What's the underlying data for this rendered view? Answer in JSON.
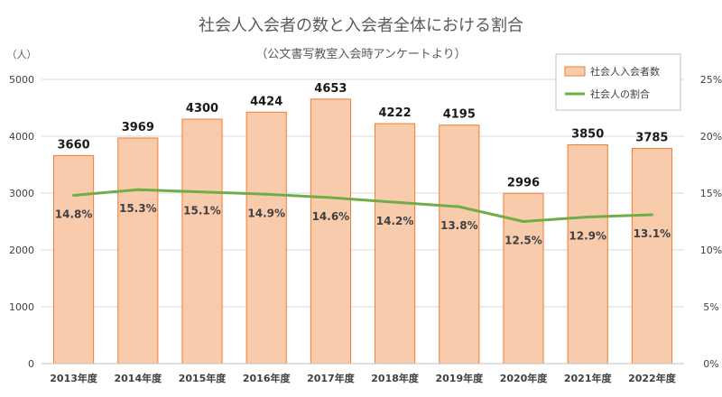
{
  "chart_data": {
    "type": "bar+line",
    "title": "社会人入会者の数と入会者全体における割合",
    "subtitle": "（公文書写教室入会時アンケートより）",
    "y_left_unit": "（人）",
    "categories": [
      "2013年度",
      "2014年度",
      "2015年度",
      "2016年度",
      "2017年度",
      "2018年度",
      "2019年度",
      "2020年度",
      "2021年度",
      "2022年度"
    ],
    "series": [
      {
        "name": "社会人入会者数",
        "type": "bar",
        "axis": "left",
        "values": [
          3660,
          3969,
          4300,
          4424,
          4653,
          4222,
          4195,
          2996,
          3850,
          3785
        ],
        "color": "#f8cbad",
        "border": "#ed7d31"
      },
      {
        "name": "社会人の割合",
        "type": "line",
        "axis": "right",
        "values": [
          14.8,
          15.3,
          15.1,
          14.9,
          14.6,
          14.2,
          13.8,
          12.5,
          12.9,
          13.1
        ],
        "labels": [
          "14.8%",
          "15.3%",
          "15.1%",
          "14.9%",
          "14.6%",
          "14.2%",
          "13.8%",
          "12.5%",
          "12.9%",
          "13.1%"
        ],
        "color": "#70ad47"
      }
    ],
    "y_left": {
      "min": 0,
      "max": 5000,
      "ticks": [
        0,
        1000,
        2000,
        3000,
        4000,
        5000
      ]
    },
    "y_right": {
      "min": 0,
      "max": 25,
      "ticks": [
        "0%",
        "5%",
        "10%",
        "15%",
        "20%",
        "25%"
      ]
    },
    "grid": true,
    "legend_position": "top-right"
  }
}
